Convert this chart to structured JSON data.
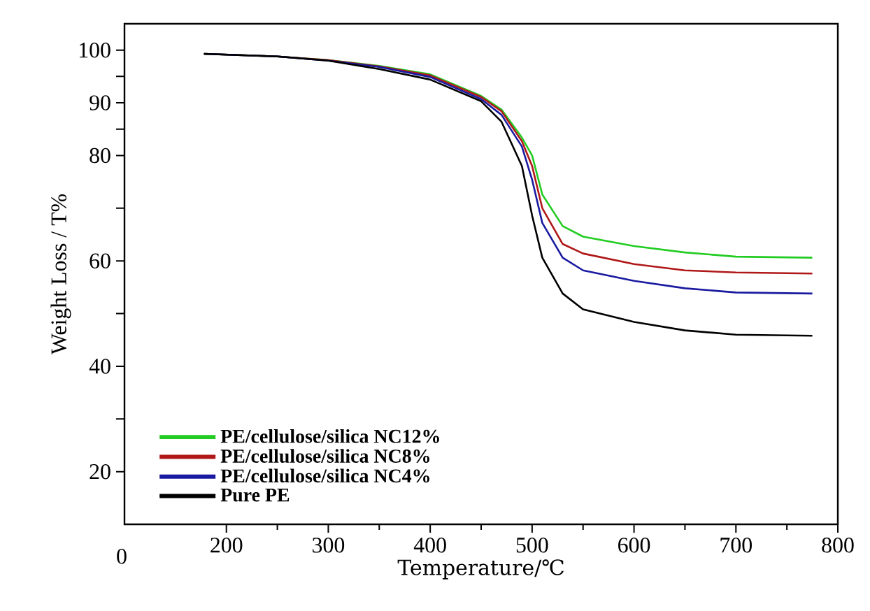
{
  "chart_data": {
    "type": "line",
    "xlabel": "Temperature/℃",
    "ylabel": "Weight Loss / T%",
    "x": [
      178,
      250,
      300,
      350,
      400,
      450,
      470,
      490,
      500,
      510,
      530,
      550,
      600,
      650,
      700,
      775
    ],
    "series": [
      {
        "name": "PE/cellulose/silica NC12%",
        "color": "#22cc22",
        "values": [
          99.3,
          98.8,
          98.1,
          97.0,
          95.4,
          91.3,
          88.7,
          83.4,
          80.0,
          72.6,
          66.6,
          64.6,
          62.8,
          61.6,
          60.8,
          60.6
        ]
      },
      {
        "name": "PE/cellulose/silica NC8%",
        "color": "#b01818",
        "values": [
          99.3,
          98.8,
          98.1,
          96.9,
          95.2,
          91.1,
          88.4,
          82.7,
          78.0,
          70.0,
          63.2,
          61.4,
          59.4,
          58.2,
          57.8,
          57.6
        ]
      },
      {
        "name": "PE/cellulose/silica NC4%",
        "color": "#1a1aa0",
        "values": [
          99.3,
          98.8,
          98.0,
          96.8,
          94.9,
          90.7,
          87.7,
          81.7,
          75.4,
          67.2,
          60.6,
          58.2,
          56.2,
          54.8,
          54.0,
          53.8
        ]
      },
      {
        "name": "Pure PE",
        "color": "#000000",
        "values": [
          99.3,
          98.8,
          98.0,
          96.4,
          94.4,
          90.3,
          86.4,
          78.0,
          68.6,
          60.6,
          53.8,
          50.8,
          48.4,
          46.8,
          46.0,
          45.8
        ]
      }
    ],
    "xlim": [
      100,
      800
    ],
    "ylim": [
      10,
      105
    ],
    "xticks": [
      200,
      300,
      400,
      500,
      600,
      700,
      800
    ],
    "yticks": [
      20,
      {
        "value": 30,
        "label": null
      },
      40,
      {
        "value": 50,
        "label": null
      },
      60,
      {
        "value": 70,
        "label": null
      },
      80,
      {
        "value": 85,
        "label": null
      },
      90,
      {
        "value": 95,
        "label": null
      },
      100
    ],
    "annotations": [
      "0"
    ],
    "legend": "bottom left",
    "grid": false,
    "marker": "none",
    "line_style": "solid"
  }
}
